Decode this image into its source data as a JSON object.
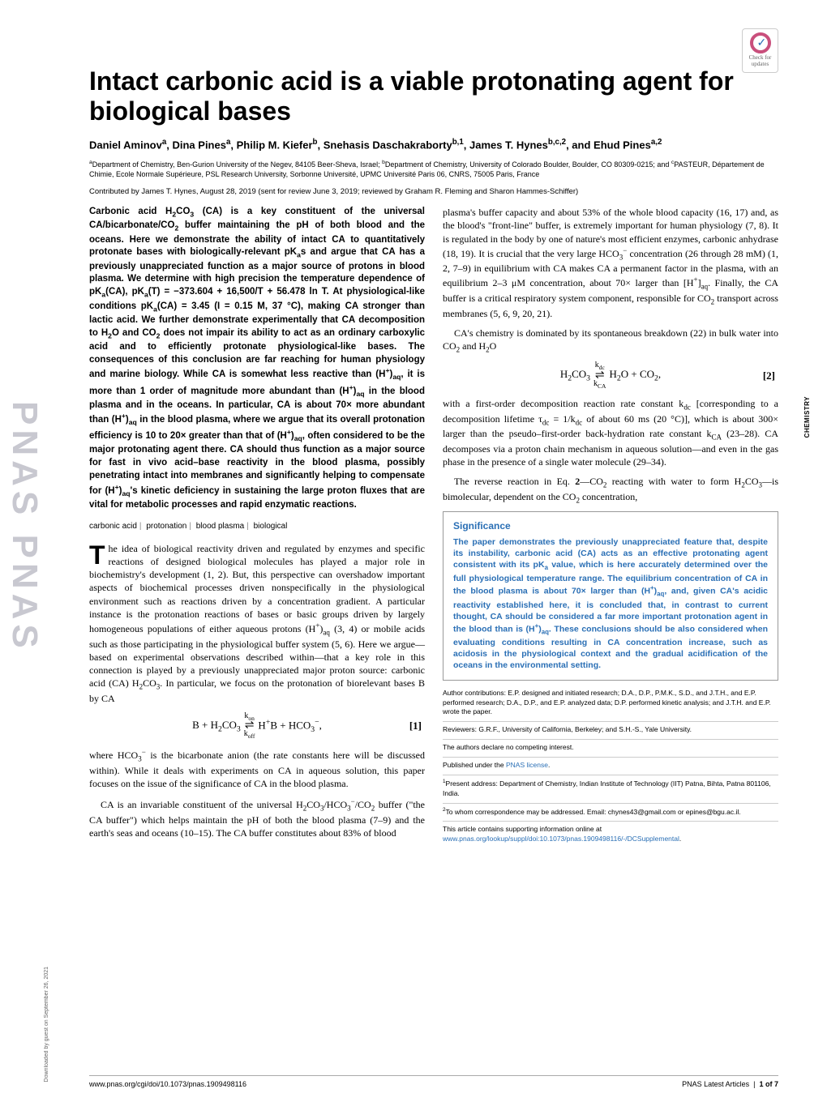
{
  "journal": {
    "sidebar_text": "PNAS PNAS",
    "check_updates_label": "Check for updates",
    "section_tab": "CHEMISTRY"
  },
  "article": {
    "title": "Intact carbonic acid is a viable protonating agent for biological bases",
    "authors_html": "Daniel Aminov<sup>a</sup>, Dina Pines<sup>a</sup>, Philip M. Kiefer<sup>b</sup>, Snehasis Daschakraborty<sup>b,1</sup>, James T. Hynes<sup>b,c,2</sup>, and Ehud Pines<sup>a,2</sup>",
    "affiliations_html": "<sup>a</sup>Department of Chemistry, Ben-Gurion University of the Negev, 84105 Beer-Sheva, Israel; <sup>b</sup>Department of Chemistry, University of Colorado Boulder, Boulder, CO 80309-0215; and <sup>c</sup>PASTEUR, Département de Chimie, Ecole Normale Supérieure, PSL Research University, Sorbonne Université, UPMC Université Paris 06, CNRS, 75005 Paris, France",
    "contributed": "Contributed by James T. Hynes, August 28, 2019 (sent for review June 3, 2019; reviewed by Graham R. Fleming and Sharon Hammes-Schiffer)"
  },
  "abstract_html": "Carbonic acid H<sub>2</sub>CO<sub>3</sub> (CA) is a key constituent of the universal CA/bicarbonate/CO<sub>2</sub> buffer maintaining the pH of both blood and the oceans. Here we demonstrate the ability of intact CA to quantitatively protonate bases with biologically-relevant pK<sub>a</sub>s and argue that CA has a previously unappreciated function as a major source of protons in blood plasma. We determine with high precision the temperature dependence of pK<sub>a</sub>(CA), pK<sub>a</sub>(T) = −373.604 + 16,500/T + 56.478 ln T. At physiological-like conditions pK<sub>a</sub>(CA) = 3.45 (I = 0.15 M, 37 °C), making CA stronger than lactic acid. We further demonstrate experimentally that CA decomposition to H<sub>2</sub>O and CO<sub>2</sub> does not impair its ability to act as an ordinary carboxylic acid and to efficiently protonate physiological-like bases. The consequences of this conclusion are far reaching for human physiology and marine biology. While CA is somewhat less reactive than (H<sup>+</sup>)<sub>aq</sub>, it is more than 1 order of magnitude more abundant than (H<sup>+</sup>)<sub>aq</sub> in the blood plasma and in the oceans. In particular, CA is about 70× more abundant than (H<sup>+</sup>)<sub>aq</sub> in the blood plasma, where we argue that its overall protonation efficiency is 10 to 20× greater than that of (H<sup>+</sup>)<sub>aq</sub>, often considered to be the major protonating agent there. CA should thus function as a major source for fast in vivo acid–base reactivity in the blood plasma, possibly penetrating intact into membranes and significantly helping to compensate for (H<sup>+</sup>)<sub>aq</sub>'s kinetic deficiency in sustaining the large proton fluxes that are vital for metabolic processes and rapid enzymatic reactions.",
  "keywords": [
    "carbonic acid",
    "protonation",
    "blood plasma",
    "biological"
  ],
  "body": {
    "p1_html": "he idea of biological reactivity driven and regulated by enzymes and specific reactions of designed biological molecules has played a major role in biochemistry's development (1, 2). But, this perspective can overshadow important aspects of biochemical processes driven nonspecifically in the physiological environment such as reactions driven by a concentration gradient. A particular instance is the protonation reactions of bases or basic groups driven by largely homogeneous populations of either aqueous protons (H<sup>+</sup>)<sub>aq</sub> (3, 4) or mobile acids such as those participating in the physiological buffer system (5, 6). Here we argue—based on experimental observations described within—that a key role in this connection is played by a previously unappreciated major proton source: carbonic acid (CA) H<sub>2</sub>CO<sub>3</sub>. In particular, we focus on the protonation of biorelevant bases B by CA",
    "p2_html": "where HCO<sub>3</sub><sup>−</sup> is the bicarbonate anion (the rate constants here will be discussed within). While it deals with experiments on CA in aqueous solution, this paper focuses on the issue of the significance of CA in the blood plasma.",
    "p3_html": "CA is an invariable constituent of the universal H<sub>2</sub>CO<sub>3</sub>/HCO<sub>3</sub><sup>−</sup>/CO<sub>2</sub> buffer (\"the CA buffer\") which helps maintain the pH of both the blood plasma (7–9) and the earth's seas and oceans (10–15). The CA buffer constitutes about 83% of blood",
    "p4_html": "plasma's buffer capacity and about 53% of the whole blood capacity (16, 17) and, as the blood's \"front-line\" buffer, is extremely important for human physiology (7, 8). It is regulated in the body by one of nature's most efficient enzymes, carbonic anhydrase (18, 19). It is crucial that the very large HCO<sub>3</sub><sup>−</sup> concentration (26 through 28 mM) (1, 2, 7–9) in equilibrium with CA makes CA a permanent factor in the plasma, with an equilibrium 2–3 μM concentration, about 70× larger than [H<sup>+</sup>]<sub>aq</sub>. Finally, the CA buffer is a critical respiratory system component, responsible for CO<sub>2</sub> transport across membranes (5, 6, 9, 20, 21).",
    "p5_html": "CA's chemistry is dominated by its spontaneous breakdown (22) in bulk water into CO<sub>2</sub> and H<sub>2</sub>O",
    "p6_html": "with a first-order decomposition reaction rate constant k<sub>dc</sub> [corresponding to a decomposition lifetime τ<sub>dc</sub> = 1/k<sub>dc</sub> of about 60 ms (20 °C)], which is about 300× larger than the pseudo–first-order back-hydration rate constant k<sub>CA</sub> (23–28). CA decomposes via a proton chain mechanism in aqueous solution—and even in the gas phase in the presence of a single water molecule (29–34).",
    "p7_html": "The reverse reaction in Eq. <b>2</b>—CO<sub>2</sub> reacting with water to form H<sub>2</sub>CO<sub>3</sub>—is bimolecular, dependent on the CO<sub>2</sub> concentration,"
  },
  "equations": {
    "eq1": {
      "left": "B + H<sub>2</sub>CO<sub>3</sub>",
      "ktop": "k<sub>on</sub>",
      "kbot": "k<sub>off</sub>",
      "right": "H<sup>+</sup>B + HCO<sub>3</sub><sup>−</sup>,",
      "num": "[1]"
    },
    "eq2": {
      "left": "H<sub>2</sub>CO<sub>3</sub>",
      "ktop": "k<sub>dc</sub>",
      "kbot": "k<sub>CA</sub>",
      "right": "H<sub>2</sub>O + CO<sub>2</sub>,",
      "num": "[2]"
    }
  },
  "significance": {
    "heading": "Significance",
    "text_html": "The paper demonstrates the previously unappreciated feature that, despite its instability, carbonic acid (CA) acts as an effective protonating agent consistent with its pK<sub>a</sub> value, which is here accurately determined over the full physiological temperature range. The equilibrium concentration of CA in the blood plasma is about 70× larger than (H<sup>+</sup>)<sub>aq</sub>, and, given CA's acidic reactivity established here, it is concluded that, in contrast to current thought, CA should be considered a far more important protonation agent in the blood than is (H<sup>+</sup>)<sub>aq</sub>. These conclusions should be also considered when evaluating conditions resulting in CA concentration increase, such as acidosis in the physiological context and the gradual acidification of the oceans in the environmental setting."
  },
  "meta": {
    "author_contrib": "Author contributions: E.P. designed and initiated research; D.A., D.P., P.M.K., S.D., and J.T.H., and E.P. performed research; D.A., D.P., and E.P. analyzed data; D.P. performed kinetic analysis; and J.T.H. and E.P. wrote the paper.",
    "reviewers": "Reviewers: G.R.F., University of California, Berkeley; and S.H.-S., Yale University.",
    "competing": "The authors declare no competing interest.",
    "license_html": "Published under the <a>PNAS license</a>.",
    "present_addr": "<sup>1</sup>Present address: Department of Chemistry, Indian Institute of Technology (IIT) Patna, Bihta, Patna 801106, India.",
    "correspondence": "<sup>2</sup>To whom correspondence may be addressed. Email: chynes43@gmail.com or epines@bgu.ac.il.",
    "si_html": "This article contains supporting information online at <a>www.pnas.org/lookup/suppl/doi:10.1073/pnas.1909498116/-/DCSupplemental</a>."
  },
  "footer": {
    "doi": "www.pnas.org/cgi/doi/10.1073/pnas.1909498116",
    "page_info": "PNAS Latest Articles | 1 of 7",
    "downloaded": "Downloaded by guest on September 26, 2021"
  },
  "colors": {
    "link": "#2a6fb5",
    "sidebar": "#c8c8d0",
    "check_ring": "#c94f7c"
  },
  "fonts": {
    "title_size": 32,
    "body_size": 12,
    "abstract_size": 11.5,
    "meta_size": 8.5
  }
}
